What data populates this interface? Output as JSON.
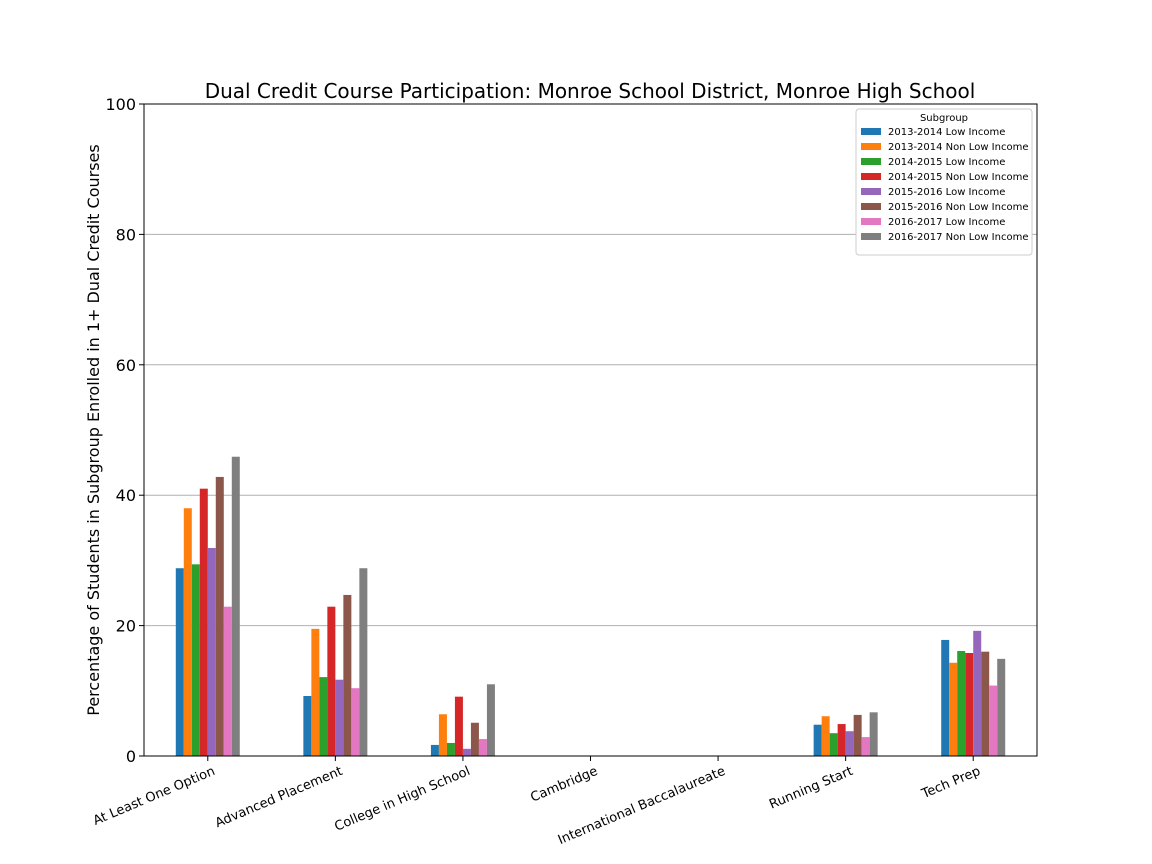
{
  "chart_data": {
    "type": "bar",
    "title": "Dual Credit Course Participation: Monroe School District, Monroe High School",
    "xlabel": "",
    "ylabel": "Percentage of Students in Subgroup Enrolled in 1+ Dual Credit Courses",
    "ylim": [
      0,
      100
    ],
    "yticks": [
      0,
      20,
      40,
      60,
      80,
      100
    ],
    "grid": "horizontal",
    "legend_title": "Subgroup",
    "legend_position": "top-right",
    "categories": [
      "At Least One Option",
      "Advanced Placement",
      "College in High School",
      "Cambridge",
      "International Baccalaureate",
      "Running Start",
      "Tech Prep"
    ],
    "series": [
      {
        "name": "2013-2014 Low Income",
        "color": "#1f77b4",
        "values": [
          28.8,
          9.2,
          1.7,
          0,
          0,
          4.8,
          17.8
        ]
      },
      {
        "name": "2013-2014 Non Low Income",
        "color": "#ff7f0e",
        "values": [
          38.0,
          19.5,
          6.4,
          0,
          0,
          6.1,
          14.3
        ]
      },
      {
        "name": "2014-2015 Low Income",
        "color": "#2ca02c",
        "values": [
          29.4,
          12.1,
          2.0,
          0,
          0,
          3.5,
          16.1
        ]
      },
      {
        "name": "2014-2015 Non Low Income",
        "color": "#d62728",
        "values": [
          41.0,
          22.9,
          9.1,
          0,
          0,
          4.9,
          15.8
        ]
      },
      {
        "name": "2015-2016 Low Income",
        "color": "#9467bd",
        "values": [
          31.9,
          11.7,
          1.1,
          0,
          0,
          3.8,
          19.2
        ]
      },
      {
        "name": "2015-2016 Non Low Income",
        "color": "#8c564b",
        "values": [
          42.8,
          24.7,
          5.1,
          0,
          0,
          6.3,
          16.0
        ]
      },
      {
        "name": "2016-2017 Low Income",
        "color": "#e377c2",
        "values": [
          22.9,
          10.4,
          2.6,
          0,
          0,
          2.9,
          10.8
        ]
      },
      {
        "name": "2016-2017 Non Low Income",
        "color": "#7f7f7f",
        "values": [
          45.9,
          28.8,
          11.0,
          0,
          0,
          6.7,
          14.9
        ]
      }
    ]
  }
}
